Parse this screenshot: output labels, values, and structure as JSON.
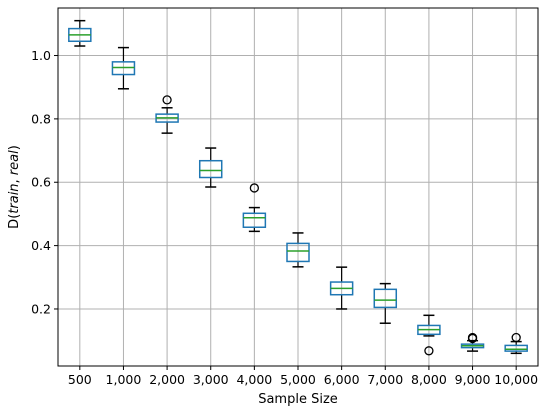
{
  "chart_data": {
    "type": "box",
    "xlabel": "Sample Size",
    "ylabel": "D(train, real)",
    "ylabel_parts": {
      "prefix": "D(",
      "a": "train",
      "sep": ", ",
      "b": "real",
      "suffix": ")"
    },
    "categories": [
      "500",
      "1,000",
      "2,000",
      "3,000",
      "4,000",
      "5,000",
      "6,000",
      "7,000",
      "8,000",
      "9,000",
      "10,000"
    ],
    "ylim": [
      0.02,
      1.15
    ],
    "yticks": [
      0.2,
      0.4,
      0.6,
      0.8,
      1.0
    ],
    "ytick_labels": [
      "0.2",
      "0.4",
      "0.6",
      "0.8",
      "1.0"
    ],
    "grid": true,
    "colors": {
      "box": "#1f77b4",
      "median": "#2ca02c",
      "whisker": "#000000",
      "grid": "#b0b0b0"
    },
    "boxes": [
      {
        "whislo": 1.03,
        "q1": 1.045,
        "med": 1.065,
        "q3": 1.085,
        "whishi": 1.11,
        "fliers": []
      },
      {
        "whislo": 0.895,
        "q1": 0.94,
        "med": 0.962,
        "q3": 0.98,
        "whishi": 1.025,
        "fliers": []
      },
      {
        "whislo": 0.755,
        "q1": 0.79,
        "med": 0.803,
        "q3": 0.815,
        "whishi": 0.835,
        "fliers": [
          0.86
        ]
      },
      {
        "whislo": 0.585,
        "q1": 0.615,
        "med": 0.637,
        "q3": 0.668,
        "whishi": 0.708,
        "fliers": []
      },
      {
        "whislo": 0.445,
        "q1": 0.458,
        "med": 0.488,
        "q3": 0.502,
        "whishi": 0.52,
        "fliers": [
          0.582
        ]
      },
      {
        "whislo": 0.333,
        "q1": 0.35,
        "med": 0.383,
        "q3": 0.407,
        "whishi": 0.44,
        "fliers": []
      },
      {
        "whislo": 0.2,
        "q1": 0.245,
        "med": 0.265,
        "q3": 0.285,
        "whishi": 0.332,
        "fliers": []
      },
      {
        "whislo": 0.155,
        "q1": 0.205,
        "med": 0.228,
        "q3": 0.262,
        "whishi": 0.28,
        "fliers": []
      },
      {
        "whislo": 0.115,
        "q1": 0.12,
        "med": 0.135,
        "q3": 0.148,
        "whishi": 0.18,
        "fliers": [
          0.068
        ]
      },
      {
        "whislo": 0.067,
        "q1": 0.078,
        "med": 0.084,
        "q3": 0.089,
        "whishi": 0.1,
        "fliers": [
          0.11,
          0.107
        ]
      },
      {
        "whislo": 0.06,
        "q1": 0.067,
        "med": 0.073,
        "q3": 0.085,
        "whishi": 0.097,
        "fliers": [
          0.11
        ]
      }
    ]
  }
}
